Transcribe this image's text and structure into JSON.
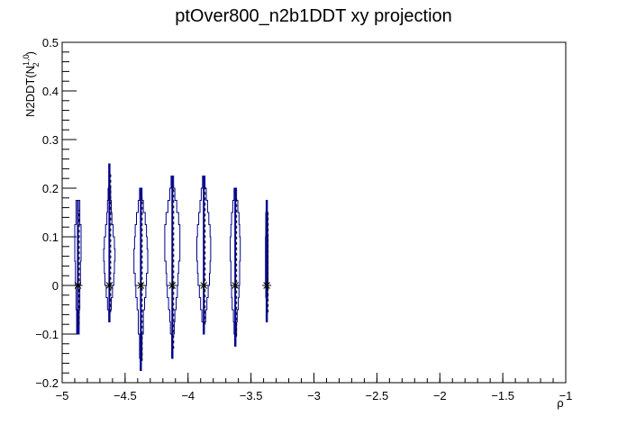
{
  "chart_data": {
    "type": "violin",
    "title": "ptOver800_n2b1DDT xy projection",
    "xlabel": "ρ",
    "ylabel": "N2DDT(N",
    "ylabel_sup": "1,0",
    "ylabel_sub": "2",
    "ylabel_close": ")",
    "xlim": [
      -5,
      -1
    ],
    "ylim": [
      -0.2,
      0.5
    ],
    "x_ticks": [
      "−5",
      "−4.5",
      "−4",
      "−3.5",
      "−3",
      "−2.5",
      "−2",
      "−1.5",
      "−1"
    ],
    "x_tick_values": [
      -5,
      -4.5,
      -4,
      -3.5,
      -3,
      -2.5,
      -2,
      -1.5,
      -1
    ],
    "y_ticks": [
      "−0.2",
      "−0.1",
      "0",
      "0.1",
      "0.2",
      "0.3",
      "0.4",
      "0.5"
    ],
    "y_tick_values": [
      -0.2,
      -0.1,
      0,
      0.1,
      0.2,
      0.3,
      0.4,
      0.5
    ],
    "line_color": "#00008b",
    "series": [
      {
        "x": -4.875,
        "median": 0,
        "ymin": -0.1,
        "ymax": 0.175,
        "profile": [
          [
            -0.1,
            0.01
          ],
          [
            -0.05,
            0.015
          ],
          [
            0,
            0.02
          ],
          [
            0.05,
            0.025
          ],
          [
            0.1,
            0.025
          ],
          [
            0.125,
            0.015
          ],
          [
            0.175,
            0.01
          ]
        ]
      },
      {
        "x": -4.625,
        "median": 0,
        "ymin": -0.075,
        "ymax": 0.25,
        "profile": [
          [
            -0.075,
            0.005
          ],
          [
            -0.05,
            0.015
          ],
          [
            -0.025,
            0.025
          ],
          [
            0,
            0.035
          ],
          [
            0.025,
            0.04
          ],
          [
            0.05,
            0.045
          ],
          [
            0.075,
            0.04
          ],
          [
            0.1,
            0.03
          ],
          [
            0.125,
            0.02
          ],
          [
            0.15,
            0.015
          ],
          [
            0.175,
            0.01
          ],
          [
            0.2,
            0.005
          ],
          [
            0.25,
            0.003
          ]
        ]
      },
      {
        "x": -4.375,
        "median": 0,
        "ymin": -0.175,
        "ymax": 0.2,
        "profile": [
          [
            -0.175,
            0.005
          ],
          [
            -0.15,
            0.01
          ],
          [
            -0.1,
            0.02
          ],
          [
            -0.05,
            0.03
          ],
          [
            -0.025,
            0.04
          ],
          [
            0,
            0.045
          ],
          [
            0.025,
            0.055
          ],
          [
            0.05,
            0.055
          ],
          [
            0.075,
            0.05
          ],
          [
            0.1,
            0.045
          ],
          [
            0.125,
            0.035
          ],
          [
            0.15,
            0.02
          ],
          [
            0.175,
            0.01
          ],
          [
            0.2,
            0.005
          ]
        ]
      },
      {
        "x": -4.125,
        "median": 0,
        "ymin": -0.15,
        "ymax": 0.225,
        "profile": [
          [
            -0.15,
            0.005
          ],
          [
            -0.1,
            0.015
          ],
          [
            -0.075,
            0.02
          ],
          [
            -0.05,
            0.03
          ],
          [
            -0.025,
            0.04
          ],
          [
            0,
            0.045
          ],
          [
            0.025,
            0.05
          ],
          [
            0.05,
            0.06
          ],
          [
            0.075,
            0.06
          ],
          [
            0.1,
            0.06
          ],
          [
            0.125,
            0.05
          ],
          [
            0.15,
            0.035
          ],
          [
            0.175,
            0.02
          ],
          [
            0.2,
            0.01
          ],
          [
            0.225,
            0.005
          ]
        ]
      },
      {
        "x": -3.875,
        "median": 0,
        "ymin": -0.1,
        "ymax": 0.225,
        "profile": [
          [
            -0.1,
            0.005
          ],
          [
            -0.075,
            0.015
          ],
          [
            -0.05,
            0.025
          ],
          [
            -0.025,
            0.035
          ],
          [
            0,
            0.045
          ],
          [
            0.025,
            0.05
          ],
          [
            0.05,
            0.055
          ],
          [
            0.075,
            0.055
          ],
          [
            0.1,
            0.05
          ],
          [
            0.125,
            0.04
          ],
          [
            0.15,
            0.03
          ],
          [
            0.175,
            0.02
          ],
          [
            0.2,
            0.01
          ],
          [
            0.225,
            0.005
          ]
        ]
      },
      {
        "x": -3.625,
        "median": 0,
        "ymin": -0.125,
        "ymax": 0.2,
        "profile": [
          [
            -0.125,
            0.005
          ],
          [
            -0.1,
            0.01
          ],
          [
            -0.075,
            0.015
          ],
          [
            -0.05,
            0.025
          ],
          [
            -0.025,
            0.03
          ],
          [
            0,
            0.035
          ],
          [
            0.025,
            0.035
          ],
          [
            0.05,
            0.04
          ],
          [
            0.075,
            0.04
          ],
          [
            0.1,
            0.035
          ],
          [
            0.125,
            0.03
          ],
          [
            0.15,
            0.02
          ],
          [
            0.175,
            0.01
          ],
          [
            0.2,
            0.005
          ]
        ]
      },
      {
        "x": -3.375,
        "median": 0,
        "ymin": -0.075,
        "ymax": 0.175,
        "profile": [
          [
            -0.075,
            0.005
          ],
          [
            -0.025,
            0.008
          ],
          [
            0,
            0.01
          ],
          [
            0.05,
            0.01
          ],
          [
            0.1,
            0.008
          ],
          [
            0.15,
            0.005
          ],
          [
            0.175,
            0.003
          ]
        ]
      }
    ]
  }
}
